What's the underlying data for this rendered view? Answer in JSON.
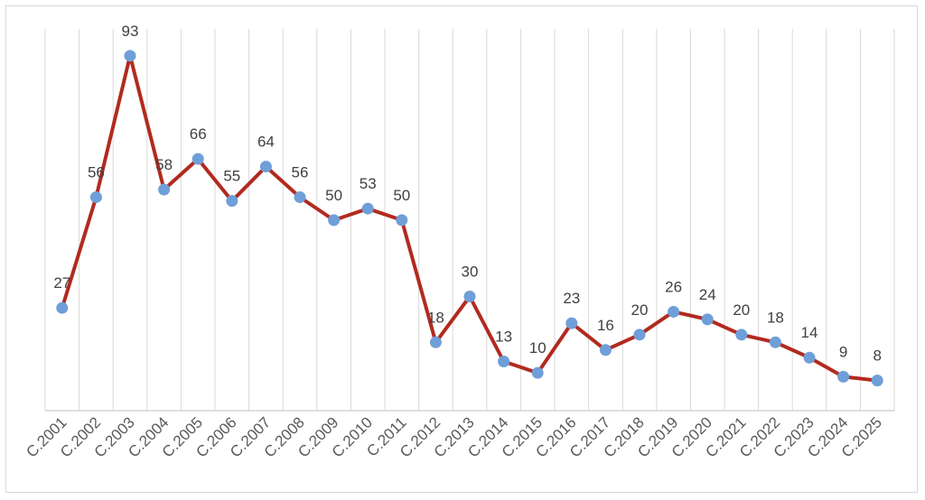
{
  "chart_data": {
    "type": "line",
    "title": "",
    "xlabel": "",
    "ylabel": "",
    "categories": [
      "C.2001",
      "C.2002",
      "C.2003",
      "C.2004",
      "C.2005",
      "C.2006",
      "C.2007",
      "C.2008",
      "C.2009",
      "C.2010",
      "C.2011",
      "C.2012",
      "C.2013",
      "C.2014",
      "C.2015",
      "C.2016",
      "C.2017",
      "C.2018",
      "C.2019",
      "C.2020",
      "C.2021",
      "C.2022",
      "C.2023",
      "C.2024",
      "C.2025"
    ],
    "series": [
      {
        "values": [
          27,
          56,
          93,
          58,
          66,
          55,
          64,
          56,
          50,
          53,
          50,
          18,
          30,
          13,
          10,
          23,
          16,
          20,
          26,
          24,
          20,
          18,
          14,
          9,
          8
        ]
      }
    ],
    "ylim": [
      0,
      100
    ],
    "grid": "vertical",
    "legend": "none",
    "data_labels": true,
    "colors": {
      "line": "#b22a1f",
      "marker": "#6f9fd8",
      "grid": "#d9d9d9",
      "axis": "#bfbfbf"
    }
  }
}
